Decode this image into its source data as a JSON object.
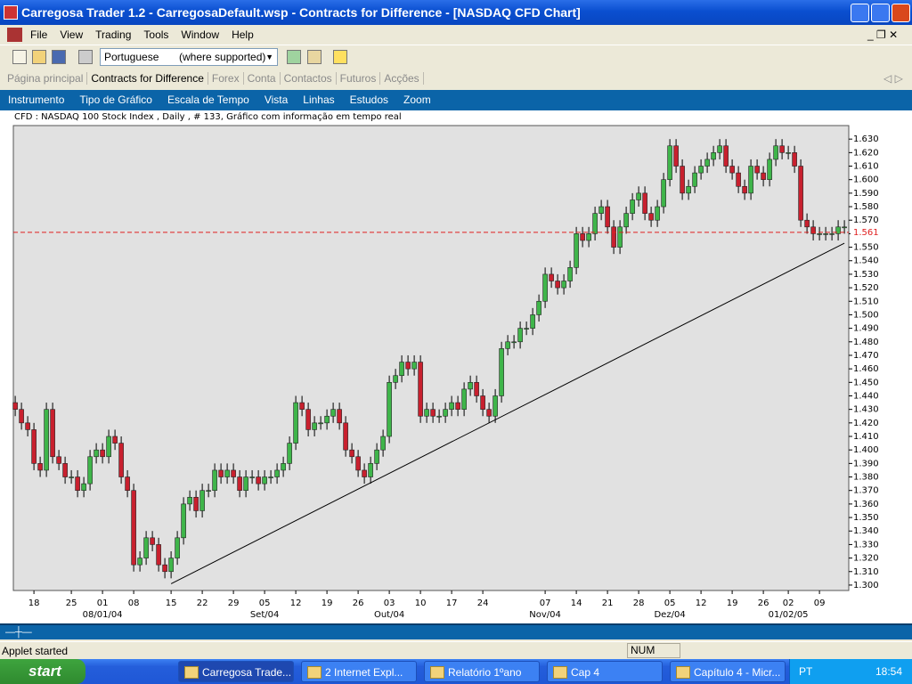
{
  "window": {
    "title": "Carregosa Trader 1.2 - CarregosaDefault.wsp - Contracts for Difference - [NASDAQ CFD Chart]"
  },
  "menu": [
    "File",
    "View",
    "Trading",
    "Tools",
    "Window",
    "Help"
  ],
  "toolbar": {
    "language": "Portuguese",
    "hint": "(where supported)"
  },
  "tabs": [
    "Página principal",
    "Contracts for Difference",
    "Forex",
    "Conta",
    "Contactos",
    "Futuros",
    "Acções"
  ],
  "chart_menu": [
    "Instrumento",
    "Tipo de Gráfico",
    "Escala de Tempo",
    "Vista",
    "Linhas",
    "Estudos",
    "Zoom"
  ],
  "status": {
    "message": "Applet started",
    "num": "NUM"
  },
  "taskbar": {
    "start": "start",
    "items": [
      "Carregosa Trade...",
      "2 Internet Expl...",
      "Relatório 1ºano",
      "Cap 4",
      "Capítulo 4 - Micr..."
    ],
    "lang": "PT",
    "clock": "18:54"
  },
  "chart_data": {
    "type": "candlestick",
    "title": "CFD : NASDAQ 100 Stock Index , Daily , # 133, Gráfico com informação em tempo real",
    "up_color": "#3fb54a",
    "down_color": "#c8202e",
    "xlim": [
      -0.3,
      133.7
    ],
    "ylim": [
      1.296,
      1.64
    ],
    "xticks": [
      {
        "value": 3,
        "label": "18"
      },
      {
        "value": 9,
        "label": "25"
      },
      {
        "value": 14,
        "label": "01"
      },
      {
        "value": 19,
        "label": "08"
      },
      {
        "value": 25,
        "label": "15"
      },
      {
        "value": 30,
        "label": "22"
      },
      {
        "value": 35,
        "label": "29"
      },
      {
        "value": 40,
        "label": "05"
      },
      {
        "value": 45,
        "label": "12"
      },
      {
        "value": 50,
        "label": "19"
      },
      {
        "value": 55,
        "label": "26"
      },
      {
        "value": 60,
        "label": "03"
      },
      {
        "value": 65,
        "label": "10"
      },
      {
        "value": 70,
        "label": "17"
      },
      {
        "value": 75,
        "label": "24"
      },
      {
        "value": 85,
        "label": "07"
      },
      {
        "value": 90,
        "label": "14"
      },
      {
        "value": 95,
        "label": "21"
      },
      {
        "value": 100,
        "label": "28"
      },
      {
        "value": 105,
        "label": "05"
      },
      {
        "value": 110,
        "label": "12"
      },
      {
        "value": 115,
        "label": "19"
      },
      {
        "value": 120,
        "label": "26"
      },
      {
        "value": 124,
        "label": "02"
      },
      {
        "value": 129,
        "label": "09"
      }
    ],
    "month_labels": [
      {
        "value": 14,
        "label": "08/01/04"
      },
      {
        "value": 40,
        "label": "Set/04"
      },
      {
        "value": 60,
        "label": "Out/04"
      },
      {
        "value": 85,
        "label": "Nov/04"
      },
      {
        "value": 105,
        "label": "Dez/04"
      },
      {
        "value": 124,
        "label": "01/02/05"
      }
    ],
    "yticks": [
      {
        "value": 1.3,
        "label": "1.300"
      },
      {
        "value": 1.31,
        "label": "1.310"
      },
      {
        "value": 1.32,
        "label": "1.320"
      },
      {
        "value": 1.33,
        "label": "1.330"
      },
      {
        "value": 1.34,
        "label": "1.340"
      },
      {
        "value": 1.35,
        "label": "1.350"
      },
      {
        "value": 1.36,
        "label": "1.360"
      },
      {
        "value": 1.37,
        "label": "1.370"
      },
      {
        "value": 1.38,
        "label": "1.380"
      },
      {
        "value": 1.39,
        "label": "1.390"
      },
      {
        "value": 1.4,
        "label": "1.400"
      },
      {
        "value": 1.41,
        "label": "1.410"
      },
      {
        "value": 1.42,
        "label": "1.420"
      },
      {
        "value": 1.43,
        "label": "1.430"
      },
      {
        "value": 1.44,
        "label": "1.440"
      },
      {
        "value": 1.45,
        "label": "1.450"
      },
      {
        "value": 1.46,
        "label": "1.460"
      },
      {
        "value": 1.47,
        "label": "1.470"
      },
      {
        "value": 1.48,
        "label": "1.480"
      },
      {
        "value": 1.49,
        "label": "1.490"
      },
      {
        "value": 1.5,
        "label": "1.500"
      },
      {
        "value": 1.51,
        "label": "1.510"
      },
      {
        "value": 1.52,
        "label": "1.520"
      },
      {
        "value": 1.53,
        "label": "1.530"
      },
      {
        "value": 1.54,
        "label": "1.540"
      },
      {
        "value": 1.55,
        "label": "1.550"
      },
      {
        "value": 1.56,
        "label": "1.560"
      },
      {
        "value": 1.57,
        "label": "1.570"
      },
      {
        "value": 1.58,
        "label": "1.580"
      },
      {
        "value": 1.59,
        "label": "1.590"
      },
      {
        "value": 1.6,
        "label": "1.600"
      },
      {
        "value": 1.61,
        "label": "1.610"
      },
      {
        "value": 1.62,
        "label": "1.620"
      },
      {
        "value": 1.63,
        "label": "1.630"
      }
    ],
    "reference_line": {
      "value": 1.561,
      "color": "#e02020"
    },
    "trendline": {
      "x": [
        25,
        133
      ],
      "y": [
        1.301,
        1.553
      ]
    },
    "open": [
      1.435,
      1.43,
      1.42,
      1.415,
      1.39,
      1.385,
      1.43,
      1.395,
      1.39,
      1.38,
      1.38,
      1.37,
      1.375,
      1.395,
      1.4,
      1.395,
      1.41,
      1.405,
      1.38,
      1.37,
      1.315,
      1.32,
      1.335,
      1.33,
      1.315,
      1.31,
      1.32,
      1.335,
      1.36,
      1.365,
      1.355,
      1.37,
      1.37,
      1.385,
      1.38,
      1.385,
      1.38,
      1.37,
      1.38,
      1.38,
      1.375,
      1.38,
      1.38,
      1.385,
      1.39,
      1.405,
      1.435,
      1.43,
      1.415,
      1.42,
      1.42,
      1.425,
      1.43,
      1.42,
      1.4,
      1.395,
      1.385,
      1.38,
      1.39,
      1.4,
      1.41,
      1.45,
      1.455,
      1.465,
      1.46,
      1.465,
      1.425,
      1.43,
      1.425,
      1.425,
      1.43,
      1.435,
      1.43,
      1.445,
      1.45,
      1.44,
      1.43,
      1.425,
      1.44,
      1.475,
      1.48,
      1.48,
      1.49,
      1.49,
      1.5,
      1.51,
      1.53,
      1.525,
      1.52,
      1.525,
      1.535,
      1.56,
      1.555,
      1.56,
      1.575,
      1.58,
      1.565,
      1.55,
      1.565,
      1.575,
      1.585,
      1.59,
      1.575,
      1.57,
      1.58,
      1.6,
      1.625,
      1.61,
      1.59,
      1.595,
      1.605,
      1.61,
      1.615,
      1.62,
      1.625,
      1.61,
      1.605,
      1.595,
      1.59,
      1.61,
      1.605,
      1.6,
      1.615,
      1.625,
      1.62,
      1.62,
      1.61,
      1.57,
      1.565,
      1.56,
      1.56,
      1.56,
      1.56,
      1.565
    ],
    "high": [
      1.44,
      1.435,
      1.425,
      1.42,
      1.395,
      1.435,
      1.435,
      1.4,
      1.395,
      1.385,
      1.385,
      1.38,
      1.4,
      1.405,
      1.405,
      1.415,
      1.415,
      1.41,
      1.385,
      1.375,
      1.325,
      1.34,
      1.34,
      1.335,
      1.32,
      1.325,
      1.34,
      1.365,
      1.37,
      1.37,
      1.375,
      1.375,
      1.39,
      1.39,
      1.39,
      1.39,
      1.385,
      1.385,
      1.385,
      1.385,
      1.385,
      1.385,
      1.39,
      1.395,
      1.41,
      1.44,
      1.44,
      1.435,
      1.425,
      1.425,
      1.43,
      1.435,
      1.435,
      1.425,
      1.405,
      1.4,
      1.39,
      1.395,
      1.405,
      1.415,
      1.455,
      1.46,
      1.47,
      1.47,
      1.47,
      1.47,
      1.435,
      1.435,
      1.43,
      1.435,
      1.44,
      1.44,
      1.45,
      1.455,
      1.455,
      1.445,
      1.435,
      1.445,
      1.48,
      1.485,
      1.485,
      1.495,
      1.495,
      1.505,
      1.515,
      1.535,
      1.535,
      1.53,
      1.53,
      1.54,
      1.565,
      1.565,
      1.565,
      1.58,
      1.585,
      1.585,
      1.57,
      1.57,
      1.58,
      1.59,
      1.595,
      1.595,
      1.58,
      1.585,
      1.605,
      1.63,
      1.63,
      1.615,
      1.6,
      1.61,
      1.615,
      1.62,
      1.625,
      1.63,
      1.63,
      1.615,
      1.61,
      1.6,
      1.615,
      1.615,
      1.61,
      1.62,
      1.63,
      1.63,
      1.625,
      1.625,
      1.615,
      1.575,
      1.57,
      1.565,
      1.565,
      1.565,
      1.57,
      1.57
    ],
    "low": [
      1.425,
      1.415,
      1.41,
      1.385,
      1.38,
      1.38,
      1.39,
      1.385,
      1.375,
      1.375,
      1.365,
      1.365,
      1.37,
      1.39,
      1.39,
      1.39,
      1.4,
      1.375,
      1.365,
      1.31,
      1.31,
      1.315,
      1.325,
      1.31,
      1.305,
      1.305,
      1.315,
      1.33,
      1.355,
      1.35,
      1.35,
      1.365,
      1.365,
      1.375,
      1.375,
      1.375,
      1.365,
      1.365,
      1.375,
      1.37,
      1.37,
      1.375,
      1.375,
      1.38,
      1.385,
      1.4,
      1.425,
      1.41,
      1.41,
      1.415,
      1.415,
      1.42,
      1.415,
      1.395,
      1.39,
      1.38,
      1.375,
      1.375,
      1.385,
      1.395,
      1.405,
      1.445,
      1.45,
      1.455,
      1.455,
      1.42,
      1.42,
      1.42,
      1.42,
      1.42,
      1.425,
      1.425,
      1.425,
      1.44,
      1.435,
      1.425,
      1.42,
      1.42,
      1.435,
      1.47,
      1.475,
      1.475,
      1.485,
      1.485,
      1.495,
      1.505,
      1.52,
      1.515,
      1.515,
      1.52,
      1.53,
      1.55,
      1.55,
      1.555,
      1.57,
      1.56,
      1.545,
      1.545,
      1.56,
      1.57,
      1.58,
      1.57,
      1.565,
      1.565,
      1.575,
      1.595,
      1.605,
      1.585,
      1.585,
      1.59,
      1.6,
      1.605,
      1.61,
      1.615,
      1.605,
      1.6,
      1.59,
      1.585,
      1.585,
      1.6,
      1.595,
      1.595,
      1.61,
      1.615,
      1.615,
      1.605,
      1.565,
      1.56,
      1.555,
      1.555,
      1.555,
      1.555,
      1.555,
      1.56
    ],
    "close": [
      1.43,
      1.42,
      1.415,
      1.39,
      1.385,
      1.43,
      1.395,
      1.39,
      1.38,
      1.38,
      1.37,
      1.375,
      1.395,
      1.4,
      1.395,
      1.41,
      1.405,
      1.38,
      1.37,
      1.315,
      1.32,
      1.335,
      1.33,
      1.315,
      1.31,
      1.32,
      1.335,
      1.36,
      1.365,
      1.355,
      1.37,
      1.37,
      1.385,
      1.38,
      1.385,
      1.38,
      1.37,
      1.38,
      1.38,
      1.375,
      1.38,
      1.38,
      1.385,
      1.39,
      1.405,
      1.435,
      1.43,
      1.415,
      1.42,
      1.42,
      1.425,
      1.43,
      1.42,
      1.4,
      1.395,
      1.385,
      1.38,
      1.39,
      1.4,
      1.41,
      1.45,
      1.455,
      1.465,
      1.46,
      1.465,
      1.425,
      1.43,
      1.425,
      1.425,
      1.43,
      1.435,
      1.43,
      1.445,
      1.45,
      1.44,
      1.43,
      1.425,
      1.44,
      1.475,
      1.48,
      1.48,
      1.49,
      1.49,
      1.5,
      1.51,
      1.53,
      1.525,
      1.52,
      1.525,
      1.535,
      1.56,
      1.555,
      1.56,
      1.575,
      1.58,
      1.565,
      1.55,
      1.565,
      1.575,
      1.585,
      1.59,
      1.575,
      1.57,
      1.58,
      1.6,
      1.625,
      1.61,
      1.59,
      1.595,
      1.605,
      1.61,
      1.615,
      1.62,
      1.625,
      1.61,
      1.605,
      1.595,
      1.59,
      1.61,
      1.605,
      1.6,
      1.615,
      1.625,
      1.62,
      1.62,
      1.61,
      1.57,
      1.565,
      1.56,
      1.56,
      1.56,
      1.56,
      1.565,
      1.565
    ]
  }
}
